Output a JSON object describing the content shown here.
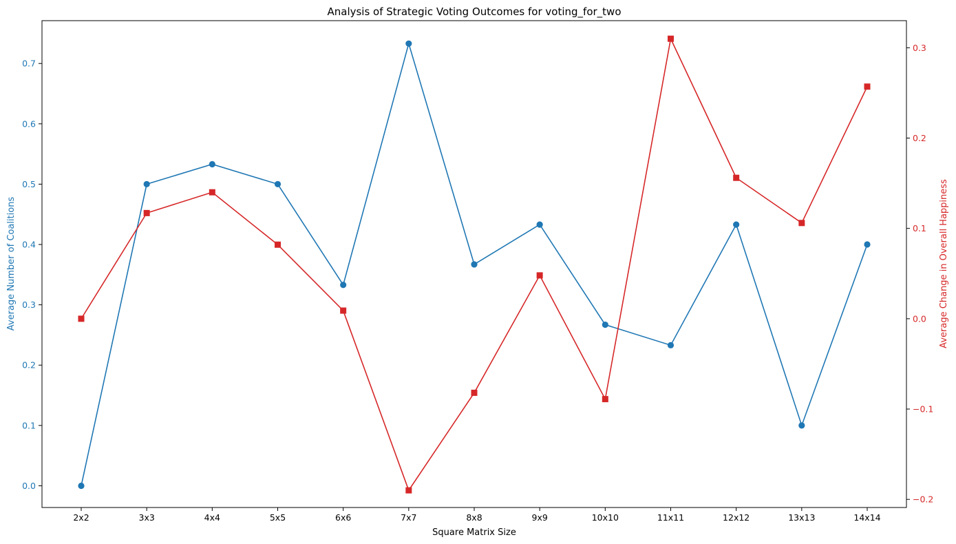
{
  "chart_data": {
    "type": "line",
    "title": "Analysis of Strategic Voting Outcomes for voting_for_two",
    "xlabel": "Square Matrix Size",
    "ylabel_left": "Average Number of Coalitions",
    "ylabel_right": "Average Change in Overall Happiness",
    "categories": [
      "2x2",
      "3x3",
      "4x4",
      "5x5",
      "6x6",
      "7x7",
      "8x8",
      "9x9",
      "10x10",
      "11x11",
      "12x12",
      "13x13",
      "14x14"
    ],
    "ylim_left": [
      -0.036,
      0.771
    ],
    "ylim_right": [
      -0.209,
      0.33
    ],
    "yticks_left": [
      0.0,
      0.1,
      0.2,
      0.3,
      0.4,
      0.5,
      0.6,
      0.7
    ],
    "yticks_right": [
      -0.2,
      -0.1,
      0.0,
      0.1,
      0.2,
      0.3
    ],
    "grid": false,
    "series": [
      {
        "axis": "left",
        "color": "#1f77b4",
        "marker": "circle",
        "values": [
          0.0,
          0.5,
          0.533,
          0.5,
          0.333,
          0.733,
          0.367,
          0.433,
          0.267,
          0.233,
          0.433,
          0.1,
          0.4
        ]
      },
      {
        "axis": "right",
        "color": "#d62728",
        "marker": "square",
        "values": [
          0.0,
          0.117,
          0.14,
          0.082,
          0.009,
          -0.19,
          -0.082,
          0.048,
          -0.089,
          0.31,
          0.156,
          0.106,
          0.257
        ]
      }
    ]
  }
}
